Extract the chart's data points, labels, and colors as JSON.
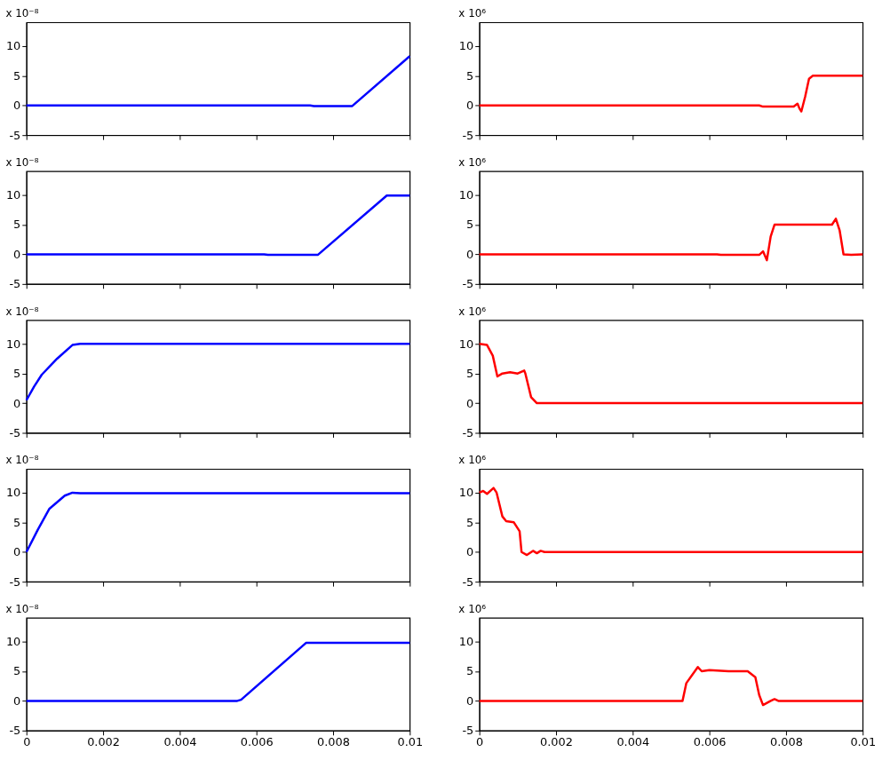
{
  "chart_data": [
    {
      "type": "line",
      "annotations": [
        "x 10⁻⁸"
      ],
      "xlim": [
        0,
        0.01
      ],
      "xticks": [
        0,
        0.002,
        0.004,
        0.006,
        0.008,
        0.01
      ],
      "ylim": [
        -5,
        14
      ],
      "yticks": [
        -5,
        0,
        5,
        10
      ],
      "tick_labels": "y",
      "series": [
        {
          "color": "#0000ff",
          "x": [
            0,
            0.0074,
            0.0075,
            0.0085,
            0.01
          ],
          "values": [
            0,
            0,
            -0.1,
            -0.1,
            8.3
          ]
        }
      ]
    },
    {
      "type": "line",
      "annotations": [
        "x 10⁶"
      ],
      "xlim": [
        0,
        0.01
      ],
      "xticks": [
        0,
        0.002,
        0.004,
        0.006,
        0.008,
        0.01
      ],
      "ylim": [
        -5,
        14
      ],
      "yticks": [
        -5,
        0,
        5,
        10
      ],
      "tick_labels": "y",
      "series": [
        {
          "color": "#ff0000",
          "x": [
            0,
            0.0073,
            0.0074,
            0.0082,
            0.0083,
            0.00835,
            0.0084,
            0.0085,
            0.0086,
            0.0087,
            0.01
          ],
          "values": [
            0,
            0,
            -0.2,
            -0.2,
            0.3,
            -0.5,
            -1,
            1.5,
            4.5,
            5,
            5
          ]
        }
      ]
    },
    {
      "type": "line",
      "annotations": [
        "x 10⁻⁸"
      ],
      "xlim": [
        0,
        0.01
      ],
      "xticks": [
        0,
        0.002,
        0.004,
        0.006,
        0.008,
        0.01
      ],
      "ylim": [
        -5,
        14
      ],
      "yticks": [
        -5,
        0,
        5,
        10
      ],
      "tick_labels": "y",
      "series": [
        {
          "color": "#0000ff",
          "x": [
            0,
            0.0062,
            0.0063,
            0.0076,
            0.0094,
            0.01
          ],
          "values": [
            0,
            0,
            -0.1,
            -0.1,
            9.9,
            9.9
          ]
        }
      ]
    },
    {
      "type": "line",
      "annotations": [
        "x 10⁶"
      ],
      "xlim": [
        0,
        0.01
      ],
      "xticks": [
        0,
        0.002,
        0.004,
        0.006,
        0.008,
        0.01
      ],
      "ylim": [
        -5,
        14
      ],
      "yticks": [
        -5,
        0,
        5,
        10
      ],
      "tick_labels": "y",
      "series": [
        {
          "color": "#ff0000",
          "x": [
            0,
            0.0062,
            0.0063,
            0.0073,
            0.0074,
            0.0075,
            0.0076,
            0.0077,
            0.0092,
            0.0093,
            0.0094,
            0.0095,
            0.0097,
            0.01
          ],
          "values": [
            0,
            0,
            -0.1,
            -0.1,
            0.5,
            -1,
            3,
            5,
            5,
            6,
            4,
            0,
            -0.1,
            0
          ]
        }
      ]
    },
    {
      "type": "line",
      "annotations": [
        "x 10⁻⁸"
      ],
      "xlim": [
        0,
        0.01
      ],
      "xticks": [
        0,
        0.002,
        0.004,
        0.006,
        0.008,
        0.01
      ],
      "ylim": [
        -5,
        14
      ],
      "yticks": [
        -5,
        0,
        5,
        10
      ],
      "tick_labels": "y",
      "series": [
        {
          "color": "#0000ff",
          "x": [
            0,
            0.0002,
            0.0004,
            0.0008,
            0.0012,
            0.0014,
            0.01
          ],
          "values": [
            0.5,
            2.8,
            4.8,
            7.5,
            9.8,
            10,
            10
          ]
        }
      ]
    },
    {
      "type": "line",
      "annotations": [
        "x 10⁶"
      ],
      "xlim": [
        0,
        0.01
      ],
      "xticks": [
        0,
        0.002,
        0.004,
        0.006,
        0.008,
        0.01
      ],
      "ylim": [
        -5,
        14
      ],
      "yticks": [
        -5,
        0,
        5,
        10
      ],
      "tick_labels": "y",
      "series": [
        {
          "color": "#ff0000",
          "x": [
            0,
            0.0002,
            0.00035,
            0.00047,
            0.0006,
            0.0008,
            0.001,
            0.00117,
            0.0012,
            0.00135,
            0.0015,
            0.01
          ],
          "values": [
            10,
            9.8,
            8,
            4.5,
            5,
            5.2,
            5,
            5.5,
            5,
            1,
            0,
            0
          ]
        }
      ]
    },
    {
      "type": "line",
      "annotations": [
        "x 10⁻⁸"
      ],
      "xlim": [
        0,
        0.01
      ],
      "xticks": [
        0,
        0.002,
        0.004,
        0.006,
        0.008,
        0.01
      ],
      "ylim": [
        -5,
        14
      ],
      "yticks": [
        -5,
        0,
        5,
        10
      ],
      "tick_labels": "y",
      "series": [
        {
          "color": "#0000ff",
          "x": [
            0,
            0.0003,
            0.0006,
            0.001,
            0.0012,
            0.0014,
            0.01
          ],
          "values": [
            0,
            3.8,
            7.3,
            9.5,
            10,
            9.9,
            9.9
          ]
        }
      ]
    },
    {
      "type": "line",
      "annotations": [
        "x 10⁶"
      ],
      "xlim": [
        0,
        0.01
      ],
      "xticks": [
        0,
        0.002,
        0.004,
        0.006,
        0.008,
        0.01
      ],
      "ylim": [
        -5,
        14
      ],
      "yticks": [
        -5,
        0,
        5,
        10
      ],
      "tick_labels": "y",
      "series": [
        {
          "color": "#ff0000",
          "x": [
            0,
            0.0001,
            0.0002,
            0.00037,
            0.00045,
            0.0006,
            0.0007,
            0.0009,
            0.00105,
            0.0011,
            0.00124,
            0.0014,
            0.0015,
            0.0016,
            0.0017,
            0.01
          ],
          "values": [
            10,
            10.3,
            9.8,
            10.8,
            10,
            6,
            5.2,
            5,
            3.5,
            0,
            -0.5,
            0.2,
            -0.2,
            0.2,
            0,
            0
          ]
        }
      ]
    },
    {
      "type": "line",
      "annotations": [
        "x 10⁻⁸"
      ],
      "xlim": [
        0,
        0.01
      ],
      "xticks": [
        0,
        0.002,
        0.004,
        0.006,
        0.008,
        0.01
      ],
      "ylim": [
        -5,
        14
      ],
      "yticks": [
        -5,
        0,
        5,
        10
      ],
      "series": [
        {
          "color": "#0000ff",
          "x": [
            0,
            0.0055,
            0.0056,
            0.0073,
            0.01
          ],
          "values": [
            0,
            0,
            0.2,
            9.8,
            9.8
          ]
        }
      ]
    },
    {
      "type": "line",
      "annotations": [
        "x 10⁶"
      ],
      "xlim": [
        0,
        0.01
      ],
      "xticks": [
        0,
        0.002,
        0.004,
        0.006,
        0.008,
        0.01
      ],
      "ylim": [
        -5,
        14
      ],
      "yticks": [
        -5,
        0,
        5,
        10
      ],
      "series": [
        {
          "color": "#ff0000",
          "x": [
            0,
            0.0053,
            0.0054,
            0.0057,
            0.0058,
            0.006,
            0.0065,
            0.007,
            0.0072,
            0.0073,
            0.0074,
            0.0076,
            0.0077,
            0.0078,
            0.01
          ],
          "values": [
            0,
            0,
            3,
            5.7,
            5,
            5.2,
            5,
            5,
            4,
            1,
            -0.7,
            0,
            0.3,
            0,
            0
          ]
        }
      ]
    }
  ]
}
